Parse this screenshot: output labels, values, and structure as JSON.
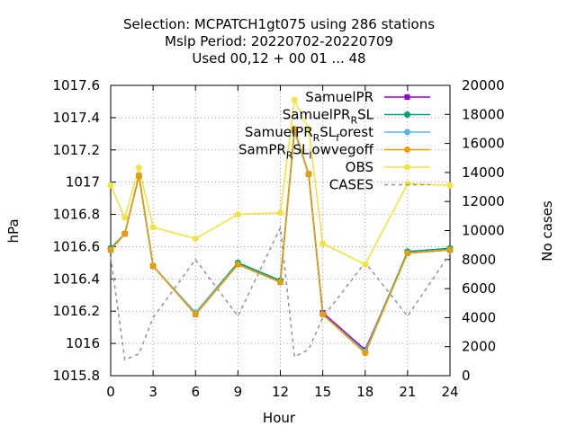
{
  "chart_data": {
    "type": "line",
    "title": [
      "Selection: MCPATCH1gt075 using   286 stations",
      "Mslp   Period: 20220702-20220709",
      "Used  00,12 + 00 01 ... 48"
    ],
    "xlabel": "Hour",
    "ylabel": "hPa",
    "y2label": "No cases",
    "xlim": [
      0,
      24
    ],
    "ylim": [
      1015.8,
      1017.6
    ],
    "y2lim": [
      0,
      20000
    ],
    "xticks": [
      0,
      3,
      6,
      9,
      12,
      15,
      18,
      21,
      24
    ],
    "yticks": [
      "1015.8",
      "1016",
      "1016.2",
      "1016.4",
      "1016.6",
      "1016.8",
      "1017",
      "1017.2",
      "1017.4",
      "1017.6"
    ],
    "y2ticks": [
      "0",
      "2000",
      "4000",
      "6000",
      "8000",
      "10000",
      "12000",
      "14000",
      "16000",
      "18000",
      "20000"
    ],
    "grid": true,
    "legend_position": "top-right",
    "series": [
      {
        "name": "SamuelPR",
        "color": "#9400d3",
        "marker": "square",
        "x": [
          0,
          1,
          2,
          3,
          6,
          9,
          12,
          13,
          14,
          15,
          18,
          21,
          24
        ],
        "y": [
          1016.58,
          1016.68,
          1017.04,
          1016.48,
          1016.18,
          1016.49,
          1016.38,
          1017.32,
          1017.05,
          1016.19,
          1015.96,
          1016.56,
          1016.58
        ]
      },
      {
        "name": "SamuelPR_R SL",
        "color": "#009e73",
        "marker": "circle",
        "x": [
          0,
          1,
          2,
          3,
          6,
          9,
          12,
          13,
          14,
          15,
          18,
          21,
          24
        ],
        "y": [
          1016.59,
          1016.68,
          1017.04,
          1016.48,
          1016.19,
          1016.5,
          1016.39,
          1017.32,
          1017.05,
          1016.18,
          1015.95,
          1016.57,
          1016.59
        ]
      },
      {
        "name": "SamuelPR_R SL_forest",
        "color": "#56b4e9",
        "marker": "circle",
        "x": [
          0,
          1,
          2,
          3,
          6,
          9,
          12,
          13,
          14,
          15,
          18,
          21,
          24
        ],
        "y": [
          1016.58,
          1016.68,
          1017.04,
          1016.48,
          1016.19,
          1016.49,
          1016.38,
          1017.32,
          1017.05,
          1016.18,
          1015.95,
          1016.56,
          1016.58
        ]
      },
      {
        "name": "SamPR_R SL_lowvegoff",
        "color": "#e69f00",
        "marker": "circle",
        "x": [
          0,
          1,
          2,
          3,
          6,
          9,
          12,
          13,
          14,
          15,
          18,
          21,
          24
        ],
        "y": [
          1016.58,
          1016.68,
          1017.04,
          1016.48,
          1016.18,
          1016.49,
          1016.38,
          1017.33,
          1017.05,
          1016.18,
          1015.94,
          1016.56,
          1016.58
        ]
      },
      {
        "name": "OBS",
        "color": "#f0e442",
        "marker": "circle",
        "x": [
          0,
          1,
          2,
          3,
          6,
          9,
          12,
          13,
          14,
          15,
          18,
          21,
          24
        ],
        "y": [
          1016.98,
          1016.78,
          1017.09,
          1016.72,
          1016.65,
          1016.8,
          1016.81,
          1017.51,
          1017.33,
          1016.62,
          1016.49,
          1016.99,
          1016.98
        ]
      },
      {
        "name": "CASES",
        "color": "#999999",
        "dashed": true,
        "axis": "y2",
        "x": [
          0,
          1,
          2,
          3,
          6,
          9,
          12,
          13,
          14,
          15,
          18,
          21,
          24
        ],
        "y": [
          8200,
          1100,
          1500,
          4000,
          8000,
          4100,
          10200,
          1300,
          1800,
          4000,
          7800,
          4100,
          8400
        ]
      }
    ],
    "legend_labels": [
      {
        "base": "SamuelPR",
        "sub": "",
        "tail": "",
        "sub2": "",
        "tail2": ""
      },
      {
        "base": "SamuelPR",
        "sub": "R",
        "tail": "SL",
        "sub2": "",
        "tail2": ""
      },
      {
        "base": "SamuelPR",
        "sub": "R",
        "tail": "SL",
        "sub2": "f",
        "tail2": "orest"
      },
      {
        "base": "SamPR",
        "sub": "R",
        "tail": "SL",
        "sub2": "l",
        "tail2": "owvegoff"
      },
      {
        "base": "OBS",
        "sub": "",
        "tail": "",
        "sub2": "",
        "tail2": ""
      },
      {
        "base": "CASES",
        "sub": "",
        "tail": "",
        "sub2": "",
        "tail2": ""
      }
    ]
  }
}
